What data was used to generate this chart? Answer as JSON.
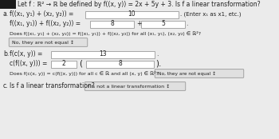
{
  "bg_color": "#ebebeb",
  "header_bar_color": "#1a1a1a",
  "header_text": "Let f : ℝ² → ℝ be defined by f((x, y)) = 2x + 5y + 3. Is f a linear transformation?",
  "text_color": "#222222",
  "box_color": "#ffffff",
  "box_edge_color": "#999999",
  "dropdown_color": "#e0e0e0",
  "dropdown_edge_color": "#888888",
  "section_a": "a.",
  "line1_left": "f((x₁, y₁) + (x₂, y₂)) =",
  "line1_box": "10",
  "line1_note": ". (Enter x₁ as x1, etc.)",
  "line2_left": "f((x₁, y₁)) + f((x₂, y₂)) =",
  "line2_box1": "8",
  "line2_plus": "+",
  "line2_box2": "5",
  "line3_text": "Does f((x₁, y₁) + (x₂, y₂)) = f((x₁, y₁)) + f((x₂, y₂)) for all (x₁, y₁), (x₂, y₂) ∈ ℝ²?",
  "line3_dd": "No, they are not equal ↕",
  "section_b": "b.",
  "line4_left": "f(c(x, y)) =",
  "line4_box": "13",
  "line5_left": "c(f((x, y))) =",
  "line5_box1": "2",
  "line5_box2": "8",
  "line6_text": "Does f(c(x, y)) = c(f((x, y))) for all c ∈ ℝ and all (x, y) ∈ ℝ²?",
  "line6_dd": "No, they are not equal ↕",
  "section_c": "c.",
  "line7_text": "Is f a linear transformation?",
  "line7_dd": "f is not a linear transformation ↕",
  "fs": 5.5,
  "fs_note": 5.0,
  "fs_small": 4.8
}
